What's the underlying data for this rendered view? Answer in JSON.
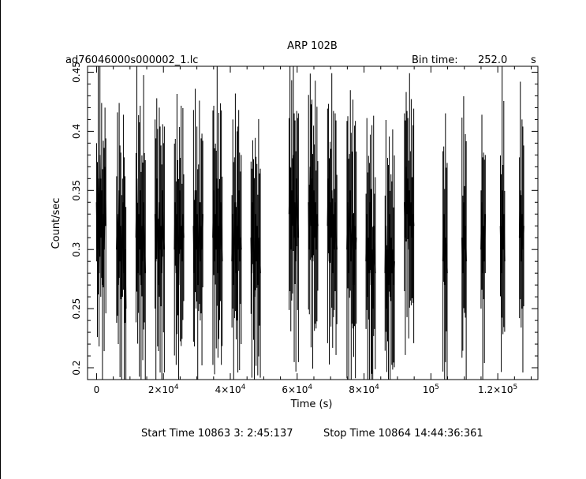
{
  "header": {
    "title": "ARP 102B",
    "file_name": "ad76046000s000002_1.lc",
    "bin_time_label": "Bin time:",
    "bin_time_value": "252.0",
    "bin_time_unit": "s"
  },
  "footer": {
    "start_time": "Start Time 10863  3: 2:45:137",
    "stop_time": "Stop Time 10864 14:44:36:361"
  },
  "chart_data": {
    "type": "line",
    "title": "ARP 102B",
    "xlabel": "Time (s)",
    "ylabel": "Count/sec",
    "xlim": [
      -2700,
      132000
    ],
    "ylim": [
      0.19,
      0.455
    ],
    "grid": false,
    "x_ticks": [
      {
        "value": 0,
        "mant": "0",
        "exp": ""
      },
      {
        "value": 20000,
        "mant": "2×10",
        "exp": "4"
      },
      {
        "value": 40000,
        "mant": "4×10",
        "exp": "4"
      },
      {
        "value": 60000,
        "mant": "6×10",
        "exp": "4"
      },
      {
        "value": 80000,
        "mant": "8×10",
        "exp": "4"
      },
      {
        "value": 100000,
        "mant": "10",
        "exp": "5"
      },
      {
        "value": 120000,
        "mant": "1.2×10",
        "exp": "5"
      }
    ],
    "y_ticks": [
      {
        "value": 0.2,
        "label": "0.2"
      },
      {
        "value": 0.25,
        "label": "0.25"
      },
      {
        "value": 0.3,
        "label": "0.3"
      },
      {
        "value": 0.35,
        "label": "0.35"
      },
      {
        "value": 0.4,
        "label": "0.4"
      },
      {
        "value": 0.45,
        "label": "0.45"
      }
    ],
    "segments": [
      {
        "t_start": 0,
        "values": [
          0.34,
          0.3,
          0.36,
          0.28,
          0.38,
          0.31,
          0.35,
          0.27,
          0.33,
          0.3,
          0.37,
          0.32
        ]
      },
      {
        "t_start": 6000,
        "values": [
          0.3,
          0.33,
          0.27,
          0.35,
          0.29,
          0.32,
          0.26,
          0.31,
          0.34,
          0.28,
          0.3,
          0.25
        ]
      },
      {
        "t_start": 11800,
        "values": [
          0.31,
          0.36,
          0.28,
          0.33,
          0.3,
          0.35,
          0.27,
          0.32,
          0.29,
          0.34,
          0.31,
          0.28
        ]
      },
      {
        "t_start": 17500,
        "values": [
          0.33,
          0.29,
          0.36,
          0.31,
          0.27,
          0.34,
          0.3,
          0.32,
          0.28,
          0.35,
          0.31,
          0.3
        ]
      },
      {
        "t_start": 23300,
        "values": [
          0.3,
          0.34,
          0.28,
          0.33,
          0.31,
          0.27,
          0.35,
          0.3,
          0.32,
          0.29,
          0.33,
          0.31
        ]
      },
      {
        "t_start": 29000,
        "values": [
          0.32,
          0.28,
          0.35,
          0.3,
          0.33,
          0.27,
          0.31,
          0.34,
          0.29,
          0.32,
          0.3,
          0.33
        ]
      },
      {
        "t_start": 34800,
        "values": [
          0.31,
          0.35,
          0.29,
          0.33,
          0.3,
          0.36,
          0.28,
          0.32,
          0.3,
          0.34,
          0.31,
          0.29
        ]
      },
      {
        "t_start": 40500,
        "values": [
          0.29,
          0.33,
          0.27,
          0.31,
          0.34,
          0.28,
          0.32,
          0.3,
          0.35,
          0.29,
          0.31,
          0.3
        ]
      },
      {
        "t_start": 46200,
        "values": [
          0.31,
          0.28,
          0.34,
          0.3,
          0.26,
          0.33,
          0.29,
          0.32,
          0.27,
          0.31,
          0.3,
          0.28
        ]
      },
      {
        "t_start": 57600,
        "values": [
          0.33,
          0.37,
          0.3,
          0.35,
          0.32,
          0.38,
          0.31,
          0.34,
          0.29,
          0.36,
          0.33,
          0.31
        ]
      },
      {
        "t_start": 63400,
        "values": [
          0.34,
          0.3,
          0.37,
          0.32,
          0.36,
          0.29,
          0.35,
          0.31,
          0.34,
          0.3,
          0.33,
          0.32
        ]
      },
      {
        "t_start": 69100,
        "values": [
          0.32,
          0.36,
          0.29,
          0.34,
          0.31,
          0.35,
          0.28,
          0.33,
          0.3,
          0.34,
          0.31,
          0.3
        ]
      },
      {
        "t_start": 74900,
        "values": [
          0.3,
          0.34,
          0.28,
          0.32,
          0.35,
          0.29,
          0.31,
          0.33,
          0.27,
          0.32,
          0.3,
          0.31
        ]
      },
      {
        "t_start": 80600,
        "values": [
          0.29,
          0.33,
          0.26,
          0.31,
          0.28,
          0.34,
          0.27,
          0.3,
          0.25,
          0.32,
          0.29,
          0.28
        ]
      },
      {
        "t_start": 86300,
        "values": [
          0.28,
          0.32,
          0.25,
          0.3,
          0.27,
          0.33,
          0.26,
          0.31,
          0.28,
          0.3,
          0.27,
          0.29
        ]
      },
      {
        "t_start": 92100,
        "values": [
          0.34,
          0.31,
          0.37,
          0.33,
          0.36,
          0.3,
          0.35,
          0.32,
          0.34,
          0.31,
          0.33,
          0.32
        ]
      },
      {
        "t_start": 103600,
        "values": [
          0.29,
          0.33,
          0.27,
          0.31,
          0.3,
          0.28
        ]
      },
      {
        "t_start": 109300,
        "values": [
          0.31,
          0.28,
          0.34,
          0.3,
          0.32,
          0.29
        ]
      },
      {
        "t_start": 115000,
        "values": [
          0.3,
          0.34,
          0.28,
          0.32,
          0.29,
          0.33
        ]
      },
      {
        "t_start": 120800,
        "values": [
          0.32,
          0.28,
          0.35,
          0.3,
          0.33,
          0.29
        ]
      },
      {
        "t_start": 126500,
        "values": [
          0.31,
          0.35,
          0.29,
          0.33,
          0.3,
          0.32
        ]
      }
    ]
  }
}
